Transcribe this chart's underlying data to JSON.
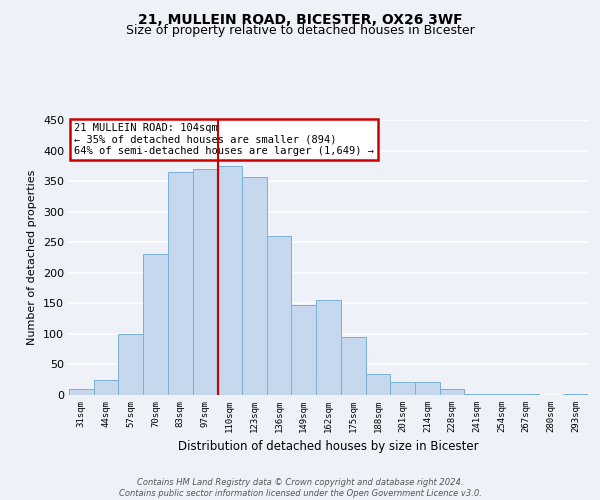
{
  "title1": "21, MULLEIN ROAD, BICESTER, OX26 3WF",
  "title2": "Size of property relative to detached houses in Bicester",
  "xlabel": "Distribution of detached houses by size in Bicester",
  "ylabel": "Number of detached properties",
  "bar_labels": [
    "31sqm",
    "44sqm",
    "57sqm",
    "70sqm",
    "83sqm",
    "97sqm",
    "110sqm",
    "123sqm",
    "136sqm",
    "149sqm",
    "162sqm",
    "175sqm",
    "188sqm",
    "201sqm",
    "214sqm",
    "228sqm",
    "241sqm",
    "254sqm",
    "267sqm",
    "280sqm",
    "293sqm"
  ],
  "bar_values": [
    10,
    25,
    100,
    230,
    365,
    370,
    375,
    357,
    260,
    148,
    155,
    95,
    35,
    22,
    22,
    10,
    2,
    2,
    2,
    0,
    2
  ],
  "bar_color": "#c5d8ee",
  "bar_edge_color": "#7bafd4",
  "highlight_line_color": "#cc0000",
  "annotation_text": "21 MULLEIN ROAD: 104sqm\n← 35% of detached houses are smaller (894)\n64% of semi-detached houses are larger (1,649) →",
  "annotation_box_color": "#ffffff",
  "annotation_box_edgecolor": "#cc0000",
  "ylim": [
    0,
    450
  ],
  "yticks": [
    0,
    50,
    100,
    150,
    200,
    250,
    300,
    350,
    400,
    450
  ],
  "bg_color": "#eef2f8",
  "plot_bg_color": "#eef2f8",
  "footnote": "Contains HM Land Registry data © Crown copyright and database right 2024.\nContains public sector information licensed under the Open Government Licence v3.0.",
  "grid_color": "#ffffff",
  "title1_fontsize": 10,
  "title2_fontsize": 9
}
